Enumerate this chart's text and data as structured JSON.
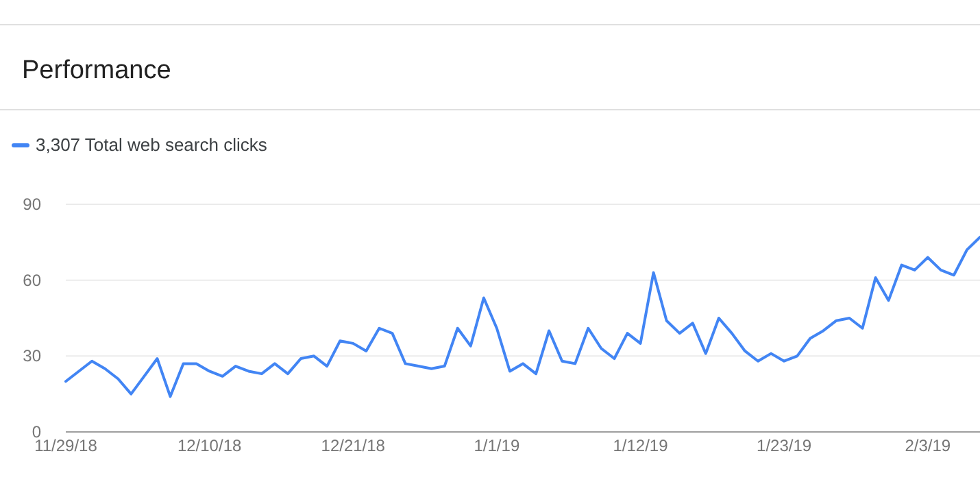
{
  "chart_data": {
    "type": "line",
    "title": "Performance",
    "x": [
      "2018-11-29",
      "2018-11-30",
      "2018-12-01",
      "2018-12-02",
      "2018-12-03",
      "2018-12-04",
      "2018-12-05",
      "2018-12-06",
      "2018-12-07",
      "2018-12-08",
      "2018-12-09",
      "2018-12-10",
      "2018-12-11",
      "2018-12-12",
      "2018-12-13",
      "2018-12-14",
      "2018-12-15",
      "2018-12-16",
      "2018-12-17",
      "2018-12-18",
      "2018-12-19",
      "2018-12-20",
      "2018-12-21",
      "2018-12-22",
      "2018-12-23",
      "2018-12-24",
      "2018-12-25",
      "2018-12-26",
      "2018-12-27",
      "2018-12-28",
      "2018-12-29",
      "2018-12-30",
      "2018-12-31",
      "2019-01-01",
      "2019-01-02",
      "2019-01-03",
      "2019-01-04",
      "2019-01-05",
      "2019-01-06",
      "2019-01-07",
      "2019-01-08",
      "2019-01-09",
      "2019-01-10",
      "2019-01-11",
      "2019-01-12",
      "2019-01-13",
      "2019-01-14",
      "2019-01-15",
      "2019-01-16",
      "2019-01-17",
      "2019-01-18",
      "2019-01-19",
      "2019-01-20",
      "2019-01-21",
      "2019-01-22",
      "2019-01-23",
      "2019-01-24",
      "2019-01-25",
      "2019-01-26",
      "2019-01-27",
      "2019-01-28",
      "2019-01-29",
      "2019-01-30",
      "2019-01-31",
      "2019-02-01",
      "2019-02-02",
      "2019-02-03",
      "2019-02-04",
      "2019-02-05",
      "2019-02-06",
      "2019-02-07"
    ],
    "series": [
      {
        "name": "3,307 Total web search clicks",
        "color": "#4285f4",
        "values": [
          20,
          24,
          28,
          25,
          21,
          15,
          22,
          29,
          14,
          27,
          27,
          24,
          22,
          26,
          24,
          23,
          27,
          23,
          29,
          30,
          26,
          36,
          35,
          32,
          41,
          39,
          27,
          26,
          25,
          26,
          41,
          34,
          53,
          41,
          24,
          27,
          23,
          40,
          28,
          27,
          41,
          33,
          29,
          39,
          35,
          63,
          44,
          39,
          43,
          31,
          45,
          39,
          32,
          28,
          31,
          28,
          30,
          37,
          40,
          44,
          45,
          41,
          61,
          52,
          66,
          64,
          69,
          64,
          62,
          72,
          77
        ]
      }
    ],
    "xlim": [
      "2018-11-29",
      "2019-02-07"
    ],
    "xticks": [
      {
        "value": "2018-11-29",
        "label": "11/29/18"
      },
      {
        "value": "2018-12-10",
        "label": "12/10/18"
      },
      {
        "value": "2018-12-21",
        "label": "12/21/18"
      },
      {
        "value": "2019-01-01",
        "label": "1/1/19"
      },
      {
        "value": "2019-01-12",
        "label": "1/12/19"
      },
      {
        "value": "2019-01-23",
        "label": "1/23/19"
      },
      {
        "value": "2019-02-03",
        "label": "2/3/19"
      }
    ],
    "ylim": [
      0,
      90
    ],
    "yticks": [
      0,
      30,
      60,
      90
    ],
    "grid": "y",
    "legend": "top left",
    "marker": "none",
    "line_style": "solid"
  }
}
